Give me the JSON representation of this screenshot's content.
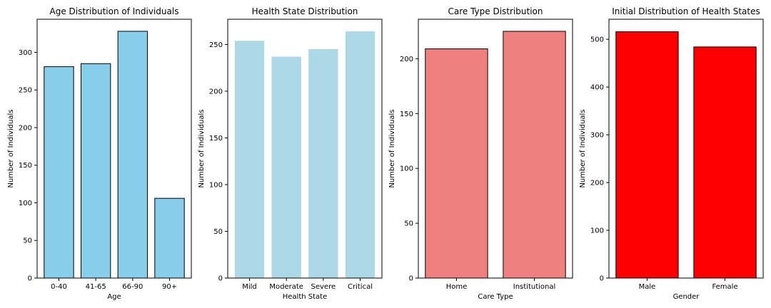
{
  "chart_data": [
    {
      "type": "bar",
      "title": "Age Distribution of Individuals",
      "xlabel": "Age",
      "ylabel": "Number of Individuals",
      "categories": [
        "0-40",
        "41-65",
        "66-90",
        "90+"
      ],
      "values": [
        281,
        285,
        328,
        106
      ],
      "ylim": [
        0,
        344
      ],
      "yticks": [
        0,
        50,
        100,
        150,
        200,
        250,
        300
      ],
      "bar_color": "#87ceeb",
      "edge_color": "#000000",
      "grid": false,
      "legend": "none"
    },
    {
      "type": "bar",
      "title": "Health State Distribution",
      "xlabel": "Health State",
      "ylabel": "Number of Individuals",
      "categories": [
        "Mild",
        "Moderate",
        "Severe",
        "Critical"
      ],
      "values": [
        254,
        237,
        245,
        264
      ],
      "ylim": [
        0,
        277
      ],
      "yticks": [
        0,
        50,
        100,
        150,
        200,
        250
      ],
      "bar_color": "#add8e6",
      "edge_color": "",
      "grid": false,
      "legend": "none"
    },
    {
      "type": "bar",
      "title": "Care Type Distribution",
      "xlabel": "Care Type",
      "ylabel": "Number of Individuals",
      "categories": [
        "Home",
        "Institutional"
      ],
      "values": [
        209,
        225
      ],
      "ylim": [
        0,
        236
      ],
      "yticks": [
        0,
        50,
        100,
        150,
        200
      ],
      "bar_color": "#f08080",
      "edge_color": "#000000",
      "grid": false,
      "legend": "none"
    },
    {
      "type": "bar",
      "title": "Initial Distribution of Health States",
      "xlabel": "Gender",
      "ylabel": "Number of Individuals",
      "categories": [
        "Male",
        "Female"
      ],
      "values": [
        516,
        484
      ],
      "ylim": [
        0,
        542
      ],
      "yticks": [
        0,
        100,
        200,
        300,
        400,
        500
      ],
      "bar_color": "#ff0000",
      "edge_color": "#000000",
      "grid": false,
      "legend": "none"
    }
  ]
}
